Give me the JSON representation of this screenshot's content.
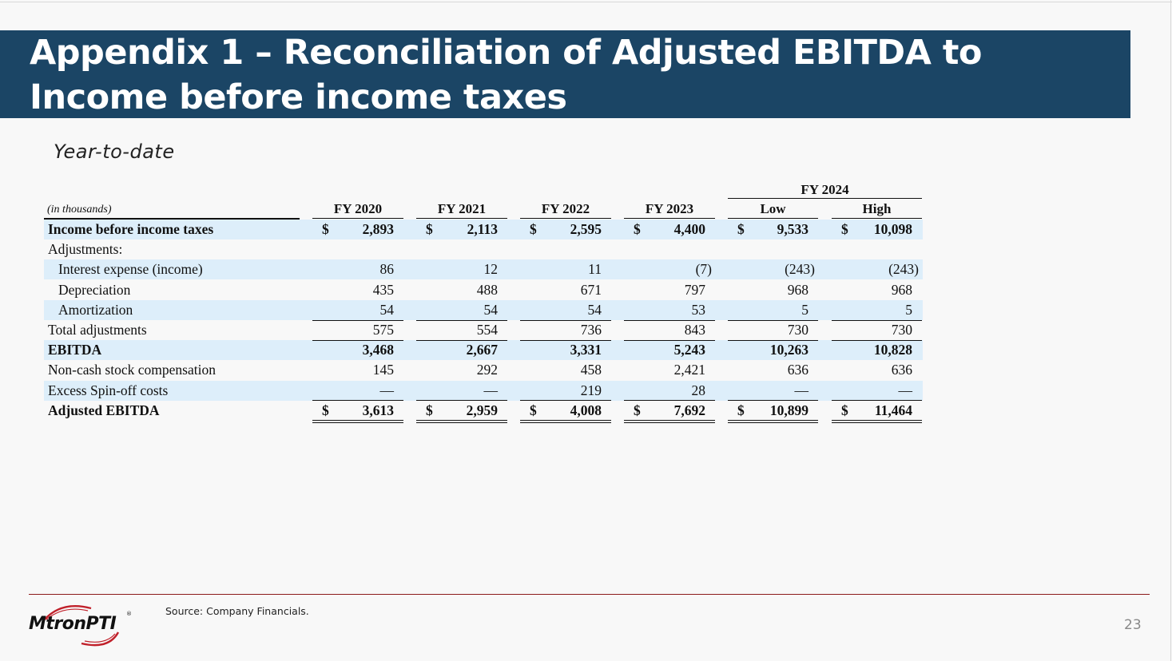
{
  "slide": {
    "title": "Appendix 1 – Reconciliation of Adjusted EBITDA to Income before income taxes",
    "subtitle": "Year-to-date",
    "source": "Source: Company Financials.",
    "page_number": "23",
    "brand_color": "#1b4565",
    "row_shade_color": "#ddeefa",
    "accent_line_color": "#8b1a1a"
  },
  "logo": {
    "text": "MtronPTI",
    "reg_mark": "®"
  },
  "table": {
    "group_header": "FY 2024",
    "unit_label": "(in thousands)",
    "columns": [
      "FY 2020",
      "FY 2021",
      "FY 2022",
      "FY 2023",
      "Low",
      "High"
    ],
    "rows": [
      {
        "label": "Income before income taxes",
        "bold": true,
        "shaded": true,
        "dollar": true,
        "indent": false,
        "values": [
          "2,893",
          "2,113",
          "2,595",
          "4,400",
          "9,533",
          "10,098"
        ]
      },
      {
        "label": "Adjustments:",
        "bold": false,
        "shaded": false,
        "dollar": false,
        "indent": false,
        "values": [
          "",
          "",
          "",
          "",
          "",
          ""
        ]
      },
      {
        "label": "Interest expense (income)",
        "bold": false,
        "shaded": true,
        "dollar": false,
        "indent": true,
        "values": [
          "86",
          "12",
          "11",
          "(7)",
          "(243)",
          "(243)"
        ]
      },
      {
        "label": "Depreciation",
        "bold": false,
        "shaded": false,
        "dollar": false,
        "indent": true,
        "values": [
          "435",
          "488",
          "671",
          "797",
          "968",
          "968"
        ]
      },
      {
        "label": "Amortization",
        "bold": false,
        "shaded": true,
        "dollar": false,
        "indent": true,
        "values": [
          "54",
          "54",
          "54",
          "53",
          "5",
          "5"
        ]
      },
      {
        "label": "Total adjustments",
        "bold": false,
        "shaded": false,
        "dollar": false,
        "indent": false,
        "values": [
          "575",
          "554",
          "736",
          "843",
          "730",
          "730"
        ]
      },
      {
        "label": "EBITDA",
        "bold": true,
        "shaded": true,
        "dollar": false,
        "indent": false,
        "values": [
          "3,468",
          "2,667",
          "3,331",
          "5,243",
          "10,263",
          "10,828"
        ]
      },
      {
        "label": "Non-cash stock compensation",
        "bold": false,
        "shaded": false,
        "dollar": false,
        "indent": false,
        "values": [
          "145",
          "292",
          "458",
          "2,421",
          "636",
          "636"
        ]
      },
      {
        "label": "Excess Spin-off costs",
        "bold": false,
        "shaded": true,
        "dollar": false,
        "indent": false,
        "values": [
          "—",
          "—",
          "219",
          "28",
          "—",
          "—"
        ]
      },
      {
        "label": "Adjusted EBITDA",
        "bold": true,
        "shaded": false,
        "dollar": true,
        "indent": false,
        "values": [
          "3,613",
          "2,959",
          "4,008",
          "7,692",
          "10,899",
          "11,464"
        ]
      }
    ]
  }
}
